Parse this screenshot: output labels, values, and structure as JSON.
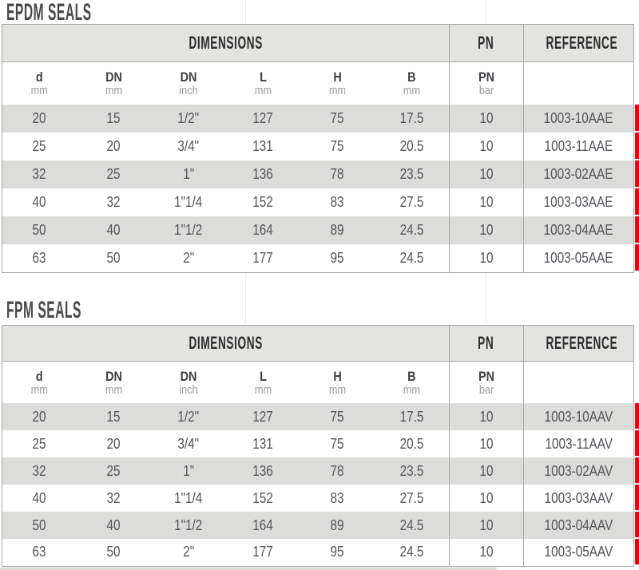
{
  "colors": {
    "accent_red": "#e30613",
    "header_bg": "#e3e3e1",
    "row_shade": "#dcdcda",
    "table_border": "#a7a7a5"
  },
  "tables": [
    {
      "title": "EPDM SEALS",
      "header": {
        "dimensions": "DIMENSIONS",
        "pn": "PN",
        "reference": "REFERENCE"
      },
      "columns": [
        {
          "label": "d",
          "unit": "mm"
        },
        {
          "label": "DN",
          "unit": "mm"
        },
        {
          "label": "DN",
          "unit": "inch"
        },
        {
          "label": "L",
          "unit": "mm"
        },
        {
          "label": "H",
          "unit": "mm"
        },
        {
          "label": "B",
          "unit": "mm"
        },
        {
          "label": "PN",
          "unit": "bar"
        },
        {
          "label": "",
          "unit": ""
        }
      ],
      "rows": [
        [
          "20",
          "15",
          "1/2\"",
          "127",
          "75",
          "17.5",
          "10",
          "1003-10AAE"
        ],
        [
          "25",
          "20",
          "3/4\"",
          "131",
          "75",
          "20.5",
          "10",
          "1003-11AAE"
        ],
        [
          "32",
          "25",
          "1\"",
          "136",
          "78",
          "23.5",
          "10",
          "1003-02AAE"
        ],
        [
          "40",
          "32",
          "1\"1/4",
          "152",
          "83",
          "27.5",
          "10",
          "1003-03AAE"
        ],
        [
          "50",
          "40",
          "1\"1/2",
          "164",
          "89",
          "24.5",
          "10",
          "1003-04AAE"
        ],
        [
          "63",
          "50",
          "2\"",
          "177",
          "95",
          "24.5",
          "10",
          "1003-05AAE"
        ]
      ]
    },
    {
      "title": "FPM SEALS",
      "header": {
        "dimensions": "DIMENSIONS",
        "pn": "PN",
        "reference": "REFERENCE"
      },
      "columns": [
        {
          "label": "d",
          "unit": "mm"
        },
        {
          "label": "DN",
          "unit": "mm"
        },
        {
          "label": "DN",
          "unit": "inch"
        },
        {
          "label": "L",
          "unit": "mm"
        },
        {
          "label": "H",
          "unit": "mm"
        },
        {
          "label": "B",
          "unit": "mm"
        },
        {
          "label": "PN",
          "unit": "bar"
        },
        {
          "label": "",
          "unit": ""
        }
      ],
      "rows": [
        [
          "20",
          "15",
          "1/2\"",
          "127",
          "75",
          "17.5",
          "10",
          "1003-10AAV"
        ],
        [
          "25",
          "20",
          "3/4\"",
          "131",
          "75",
          "20.5",
          "10",
          "1003-11AAV"
        ],
        [
          "32",
          "25",
          "1\"",
          "136",
          "78",
          "23.5",
          "10",
          "1003-02AAV"
        ],
        [
          "40",
          "32",
          "1\"1/4",
          "152",
          "83",
          "27.5",
          "10",
          "1003-03AAV"
        ],
        [
          "50",
          "40",
          "1\"1/2",
          "164",
          "89",
          "24.5",
          "10",
          "1003-04AAV"
        ],
        [
          "63",
          "50",
          "2\"",
          "177",
          "95",
          "24.5",
          "10",
          "1003-05AAV"
        ]
      ]
    }
  ]
}
